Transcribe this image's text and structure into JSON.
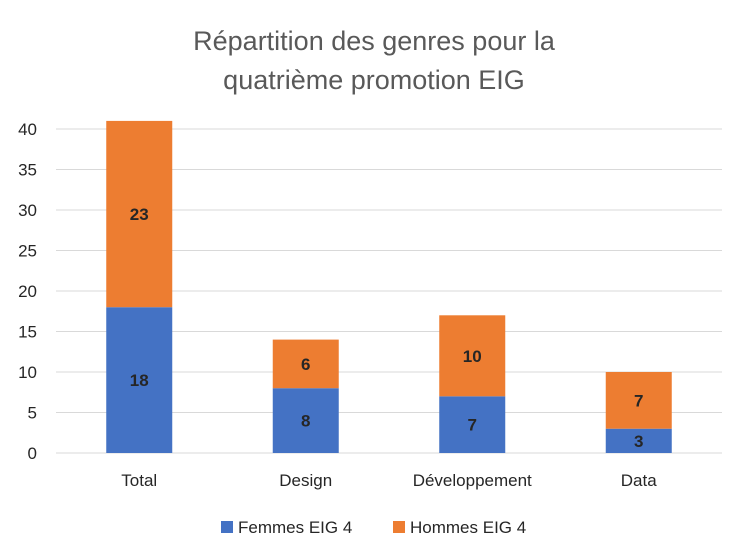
{
  "chart_data": {
    "type": "bar",
    "stacked": true,
    "title_lines": [
      "Répartition des genres pour la",
      "quatrième promotion EIG"
    ],
    "categories": [
      "Total",
      "Design",
      "Développement",
      "Data"
    ],
    "series": [
      {
        "name": "Femmes EIG 4",
        "color": "#4472C4",
        "values": [
          18,
          8,
          7,
          3
        ]
      },
      {
        "name": "Hommes EIG 4",
        "color": "#ED7D31",
        "values": [
          23,
          6,
          10,
          7
        ]
      }
    ],
    "ylim": [
      0,
      40
    ],
    "yticks": [
      0,
      5,
      10,
      15,
      20,
      25,
      30,
      35,
      40
    ],
    "grid": true,
    "legend_position": "bottom",
    "data_labels": true
  }
}
